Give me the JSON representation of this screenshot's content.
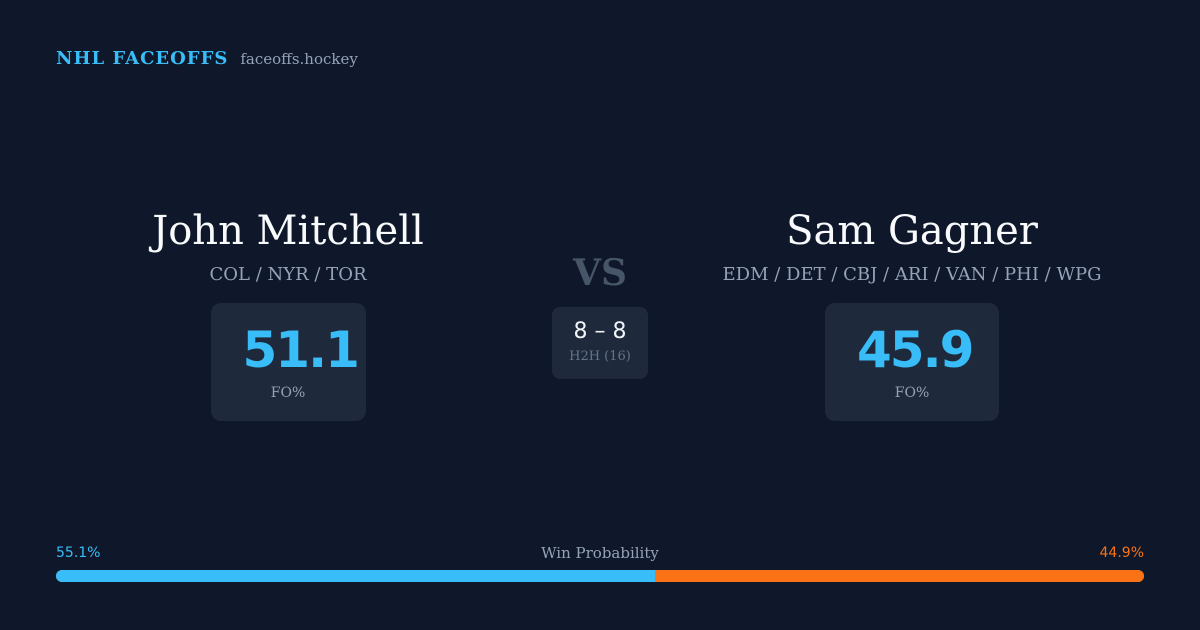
{
  "header": {
    "brand": "NHL FACEOFFS",
    "domain": "faceoffs.hockey"
  },
  "player1": {
    "name": "John Mitchell",
    "teams": "COL / NYR / TOR",
    "fo_value": "51.1",
    "fo_label": "FO%"
  },
  "vs_label": "VS",
  "h2h": {
    "score": "8 – 8",
    "label": "H2H (16)"
  },
  "player2": {
    "name": "Sam Gagner",
    "teams": "EDM / DET / CBJ / ARI / VAN / PHI / WPG",
    "fo_value": "45.9",
    "fo_label": "FO%"
  },
  "win_probability": {
    "title": "Win Probability",
    "left_text": "55.1%",
    "right_text": "44.9%",
    "left_fraction": 0.551,
    "right_fraction": 0.449,
    "left_color": "#38bdf8",
    "right_color": "#f97316"
  },
  "colors": {
    "background": "#0f172a",
    "accent": "#38bdf8",
    "card": "#1e293b",
    "muted": "#94a3b8"
  }
}
